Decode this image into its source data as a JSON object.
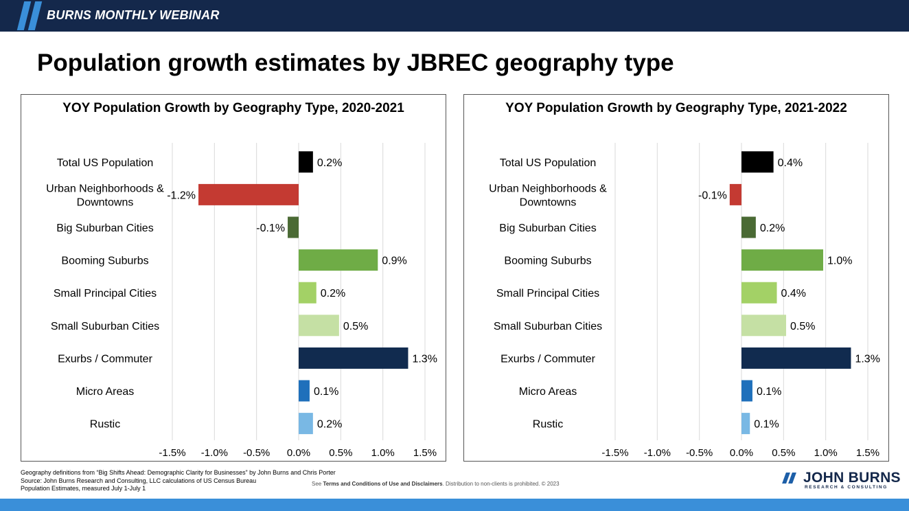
{
  "header": {
    "title": "BURNS MONTHLY WEBINAR"
  },
  "slide": {
    "title": "Population growth estimates by JBREC geography type"
  },
  "chart_data": [
    {
      "type": "bar",
      "orientation": "horizontal",
      "title": "YOY Population Growth by Geography Type, 2020-2021",
      "categories": [
        "Total US Population",
        "Urban Neighborhoods & Downtowns",
        "Big Suburban Cities",
        "Booming Suburbs",
        "Small Principal Cities",
        "Small Suburban Cities",
        "Exurbs / Commuter",
        "Micro Areas",
        "Rustic"
      ],
      "values": [
        0.2,
        -1.2,
        -0.1,
        0.9,
        0.2,
        0.5,
        1.3,
        0.1,
        0.2
      ],
      "data_labels": [
        "0.2%",
        "-1.2%",
        "-0.1%",
        "0.9%",
        "0.2%",
        "0.5%",
        "1.3%",
        "0.1%",
        "0.2%"
      ],
      "bar_values": [
        0.17,
        -1.19,
        -0.13,
        0.94,
        0.21,
        0.48,
        1.3,
        0.13,
        0.17
      ],
      "colors": [
        "#000000",
        "#c43a32",
        "#4a6a34",
        "#6fac46",
        "#a3d166",
        "#c5e0a4",
        "#112b4f",
        "#1f70bb",
        "#79b8e4"
      ],
      "xlim": [
        -1.5,
        1.5
      ],
      "xticks": [
        -1.5,
        -1.0,
        -0.5,
        0.0,
        0.5,
        1.0,
        1.5
      ],
      "xtick_labels": [
        "-1.5%",
        "-1.0%",
        "-0.5%",
        "0.0%",
        "0.5%",
        "1.0%",
        "1.5%"
      ],
      "grid": true
    },
    {
      "type": "bar",
      "orientation": "horizontal",
      "title": "YOY Population Growth by Geography Type, 2021-2022",
      "categories": [
        "Total US Population",
        "Urban Neighborhoods & Downtowns",
        "Big Suburban Cities",
        "Booming Suburbs",
        "Small Principal Cities",
        "Small Suburban Cities",
        "Exurbs / Commuter",
        "Micro Areas",
        "Rustic"
      ],
      "values": [
        0.4,
        -0.1,
        0.2,
        1.0,
        0.4,
        0.5,
        1.3,
        0.1,
        0.1
      ],
      "data_labels": [
        "0.4%",
        "-0.1%",
        "0.2%",
        "1.0%",
        "0.4%",
        "0.5%",
        "1.3%",
        "0.1%",
        "0.1%"
      ],
      "bar_values": [
        0.38,
        -0.14,
        0.17,
        0.97,
        0.42,
        0.53,
        1.3,
        0.13,
        0.1
      ],
      "colors": [
        "#000000",
        "#c43a32",
        "#4a6a34",
        "#6fac46",
        "#a3d166",
        "#c5e0a4",
        "#112b4f",
        "#1f70bb",
        "#79b8e4"
      ],
      "xlim": [
        -1.5,
        1.5
      ],
      "xticks": [
        -1.5,
        -1.0,
        -0.5,
        0.0,
        0.5,
        1.0,
        1.5
      ],
      "xtick_labels": [
        "-1.5%",
        "-1.0%",
        "-0.5%",
        "0.0%",
        "0.5%",
        "1.0%",
        "1.5%"
      ],
      "grid": true
    }
  ],
  "footer": {
    "notes": [
      "Geography definitions from “Big Shifts Ahead: Demographic Clarity for Businesses” by John Burns and Chris Porter",
      "Source: John Burns Research and Consulting, LLC calculations of US Census Bureau",
      "Population Estimates, measured July 1-July 1"
    ],
    "disclaimer_prefix": "See ",
    "disclaimer_link": "Terms and Conditions of Use and Disclaimers",
    "disclaimer_suffix": ". Distribution to non-clients is prohibited. © 2023"
  },
  "logo": {
    "main": "JOHN BURNS",
    "sub": "RESEARCH & CONSULTING"
  }
}
